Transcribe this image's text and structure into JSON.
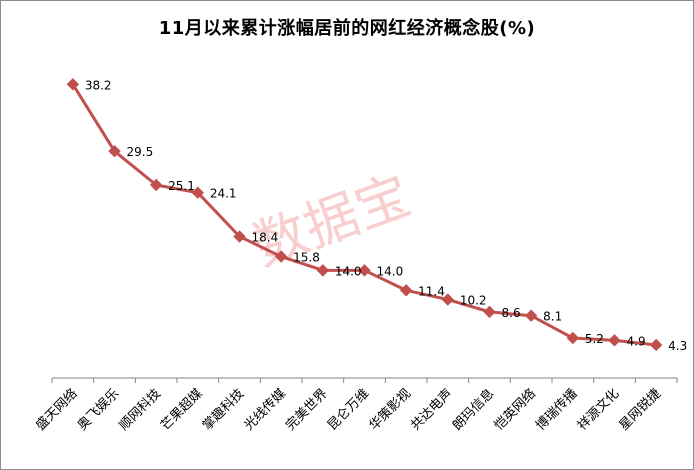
{
  "chart_data": {
    "type": "line",
    "title": "11月以来累计涨幅居前的网红经济概念股(%)",
    "categories": [
      "盛天网络",
      "奥飞娱乐",
      "顺网科技",
      "芒果超媒",
      "掌趣科技",
      "光线传媒",
      "完美世界",
      "昆仑万维",
      "华策影视",
      "共达电声",
      "朗玛信息",
      "恺英网络",
      "博瑞传播",
      "祥源文化",
      "星网锐捷"
    ],
    "values": [
      38.2,
      29.5,
      25.1,
      24.1,
      18.4,
      15.8,
      14.0,
      14.0,
      11.4,
      10.2,
      8.6,
      8.1,
      5.2,
      4.9,
      4.3
    ],
    "value_labels": [
      "38.2",
      "29.5",
      "25.1",
      "24.1",
      "18.4",
      "15.8",
      "14.0",
      "14.0",
      "11.4",
      "10.2",
      "8.6",
      "8.1",
      "5.2",
      "4.9",
      "4.3"
    ],
    "ylim": [
      0,
      45
    ],
    "grid": false,
    "legend": "none",
    "series_color": "#c0504d",
    "marker": "diamond"
  },
  "watermark": "数据宝"
}
